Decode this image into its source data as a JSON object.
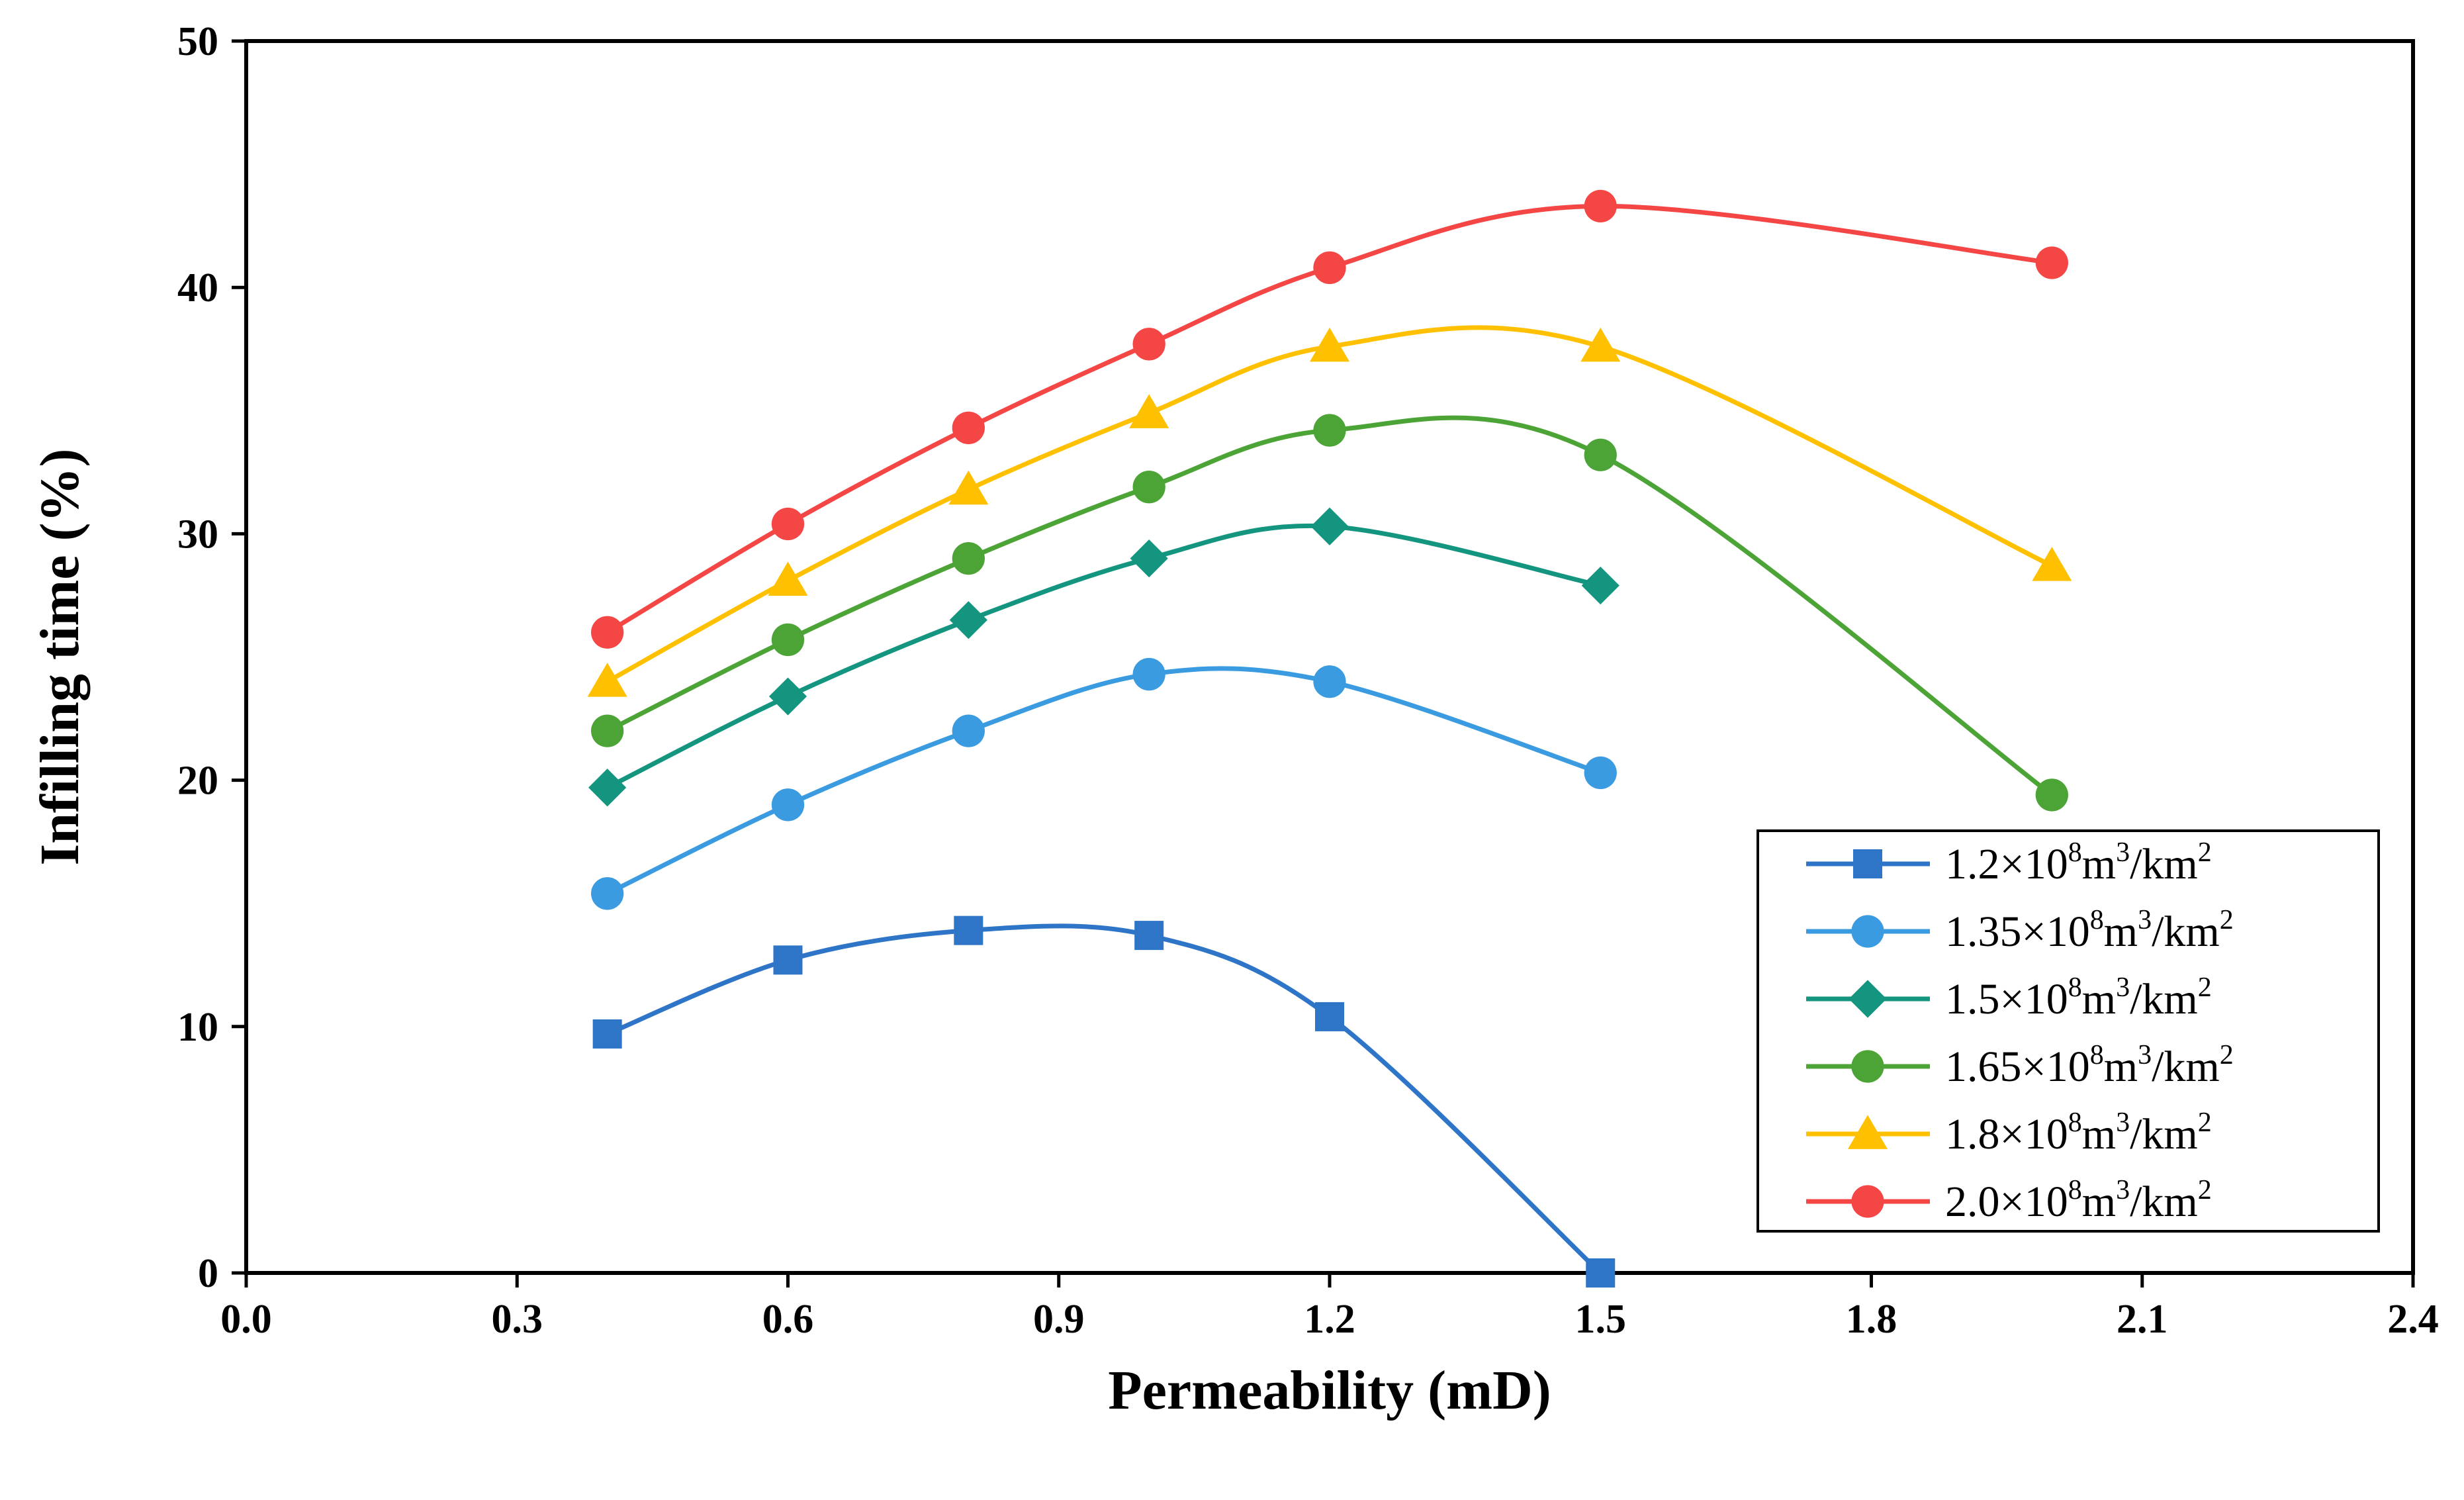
{
  "chart_data": {
    "type": "line",
    "title": "",
    "xlabel": "Permeability (mD)",
    "ylabel": "Infilling time (%)",
    "xlim": [
      0.0,
      2.4
    ],
    "ylim": [
      0,
      50
    ],
    "xticks": [
      0.0,
      0.3,
      0.6,
      0.9,
      1.2,
      1.5,
      1.8,
      2.1,
      2.4
    ],
    "xtick_labels": [
      "0.0",
      "0.3",
      "0.6",
      "0.9",
      "1.2",
      "1.5",
      "1.8",
      "2.1",
      "2.4"
    ],
    "yticks": [
      0,
      10,
      20,
      30,
      40,
      50
    ],
    "ytick_labels": [
      "0",
      "10",
      "20",
      "30",
      "40",
      "50"
    ],
    "grid": false,
    "smooth": true,
    "legend_position": "bottom-right",
    "series": [
      {
        "name": "1.2×10⁸m³/km²",
        "legend": {
          "base": "1.2×10",
          "exp": "8",
          "mid": "m",
          "exp2": "3",
          "tail": "/km",
          "exp3": "2"
        },
        "color": "#2E75C8",
        "marker": "square",
        "x": [
          0.4,
          0.6,
          0.8,
          1.0,
          1.2,
          1.5
        ],
        "y": [
          9.7,
          12.7,
          13.9,
          13.7,
          10.4,
          0.0
        ]
      },
      {
        "name": "1.35×10⁸m³/km²",
        "legend": {
          "base": "1.35×10",
          "exp": "8",
          "mid": "m",
          "exp2": "3",
          "tail": "/km",
          "exp3": "2"
        },
        "color": "#3A9BE0",
        "marker": "circle",
        "x": [
          0.4,
          0.6,
          0.8,
          1.0,
          1.2,
          1.5
        ],
        "y": [
          15.4,
          19.0,
          22.0,
          24.3,
          24.0,
          20.3
        ]
      },
      {
        "name": "1.5×10⁸m³/km²",
        "legend": {
          "base": "1.5×10",
          "exp": "8",
          "mid": "m",
          "exp2": "3",
          "tail": "/km",
          "exp3": "2"
        },
        "color": "#13957F",
        "marker": "diamond",
        "x": [
          0.4,
          0.6,
          0.8,
          1.0,
          1.2,
          1.5
        ],
        "y": [
          19.7,
          23.4,
          26.5,
          29.0,
          30.3,
          27.9
        ]
      },
      {
        "name": "1.65×10⁸m³/km²",
        "legend": {
          "base": "1.65×10",
          "exp": "8",
          "mid": "m",
          "exp2": "3",
          "tail": "/km",
          "exp3": "2"
        },
        "color": "#4CA436",
        "marker": "circle",
        "x": [
          0.4,
          0.6,
          0.8,
          1.0,
          1.2,
          1.5,
          2.0
        ],
        "y": [
          22.0,
          25.7,
          29.0,
          31.9,
          34.2,
          33.2,
          19.4
        ]
      },
      {
        "name": "1.8×10⁸m³/km²",
        "legend": {
          "base": "1.8×10",
          "exp": "8",
          "mid": "m",
          "exp2": "3",
          "tail": "/km",
          "exp3": "2"
        },
        "color": "#FFC000",
        "marker": "triangle",
        "x": [
          0.4,
          0.6,
          0.8,
          1.0,
          1.2,
          1.5,
          2.0
        ],
        "y": [
          24.0,
          28.1,
          31.8,
          34.9,
          37.6,
          37.6,
          28.7
        ]
      },
      {
        "name": "2.0×10⁸m³/km²",
        "legend": {
          "base": "2.0×10",
          "exp": "8",
          "mid": "m",
          "exp2": "3",
          "tail": "/km",
          "exp3": "2"
        },
        "color": "#F54646",
        "marker": "circle",
        "x": [
          0.4,
          0.6,
          0.8,
          1.0,
          1.2,
          1.5,
          2.0
        ],
        "y": [
          26.0,
          30.4,
          34.3,
          37.7,
          40.8,
          43.3,
          41.0
        ]
      }
    ]
  }
}
